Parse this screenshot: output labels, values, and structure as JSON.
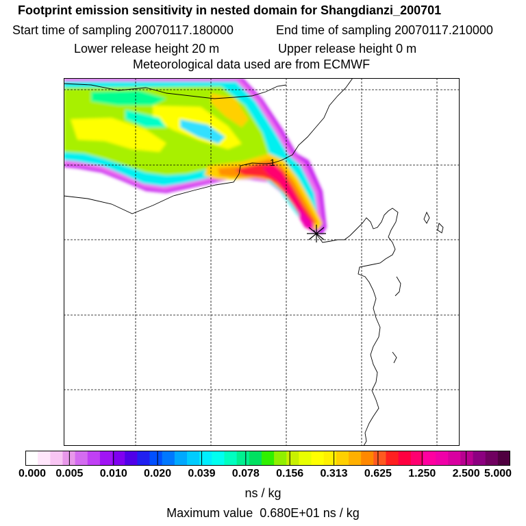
{
  "header": {
    "title": "Footprint emission sensitivity in nested domain for Shangdianzi_200701",
    "start_label": "Start time of sampling 20070117.180000",
    "end_label": "End time of sampling 20070117.210000",
    "lower_label": "Lower release height   20 m",
    "upper_label": "Upper release height    0 m",
    "met_label": "Meteorological data used are from ECMWF"
  },
  "map": {
    "release_marker": "1",
    "receptor_icon": "star-icon"
  },
  "colorbar": {
    "colors": [
      "#ffffff",
      "#ffe6fb",
      "#f8c5f3",
      "#e898ea",
      "#d46cf0",
      "#c040f4",
      "#a014f4",
      "#8000f0",
      "#5000e8",
      "#2020f0",
      "#0050ff",
      "#0078ff",
      "#00a8ff",
      "#00ccff",
      "#00eeff",
      "#00fff0",
      "#00ffc0",
      "#00f090",
      "#00e060",
      "#30f000",
      "#90f000",
      "#c8f000",
      "#e8ff00",
      "#ffff00",
      "#fff000",
      "#ffd000",
      "#ffb000",
      "#ff8800",
      "#ff5a20",
      "#ff2020",
      "#ff0040",
      "#ff0070",
      "#ff00a0",
      "#f000a8",
      "#d800a0",
      "#b80090",
      "#8c0080",
      "#700060",
      "#500040"
    ],
    "ticks": [
      "0.000",
      "0.005",
      "0.010",
      "0.020",
      "0.039",
      "0.078",
      "0.156",
      "0.313",
      "0.625",
      "1.250",
      "2.500",
      "5.000"
    ],
    "units": "ns / kg",
    "max_label": "Maximum value  0.680E+01 ns / kg"
  }
}
